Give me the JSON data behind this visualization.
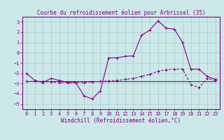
{
  "title": "Courbe du refroidissement éolien pour Arbrissel (35)",
  "xlabel": "Windchill (Refroidissement éolien,°C)",
  "x": [
    0,
    1,
    2,
    3,
    4,
    5,
    6,
    7,
    8,
    9,
    10,
    11,
    12,
    13,
    14,
    15,
    16,
    17,
    18,
    19,
    20,
    21,
    22,
    23
  ],
  "line1": [
    -2.0,
    -2.7,
    -2.9,
    -2.5,
    -2.7,
    -2.9,
    -2.9,
    -4.2,
    -4.5,
    -3.7,
    -0.5,
    -0.5,
    -0.35,
    -0.3,
    1.7,
    2.2,
    3.1,
    2.4,
    2.3,
    1.0,
    -1.6,
    -1.6,
    -2.3,
    -2.6
  ],
  "line3_x": [
    0,
    23
  ],
  "line3_y": [
    -2.8,
    -2.8
  ],
  "line4_y": [
    -2.8,
    -2.8,
    -2.8,
    -2.85,
    -2.9,
    -2.9,
    -2.9,
    -2.9,
    -2.85,
    -2.8,
    -2.75,
    -2.7,
    -2.6,
    -2.5,
    -2.3,
    -2.1,
    -1.8,
    -1.65,
    -1.6,
    -1.6,
    -3.1,
    -3.4,
    -2.5,
    -2.7
  ],
  "bg_color": "#cce8e8",
  "line_color": "#880088",
  "grid_color": "#aacccc",
  "ylim": [
    -5.5,
    3.5
  ],
  "yticks": [
    -5,
    -4,
    -3,
    -2,
    -1,
    0,
    1,
    2,
    3
  ],
  "xticks": [
    0,
    1,
    2,
    3,
    4,
    5,
    6,
    7,
    8,
    9,
    10,
    11,
    12,
    13,
    14,
    15,
    16,
    17,
    18,
    19,
    20,
    21,
    22,
    23
  ],
  "xlim": [
    -0.5,
    23.5
  ],
  "title_fontsize": 5.5,
  "tick_fontsize": 5,
  "xlabel_fontsize": 5.5
}
